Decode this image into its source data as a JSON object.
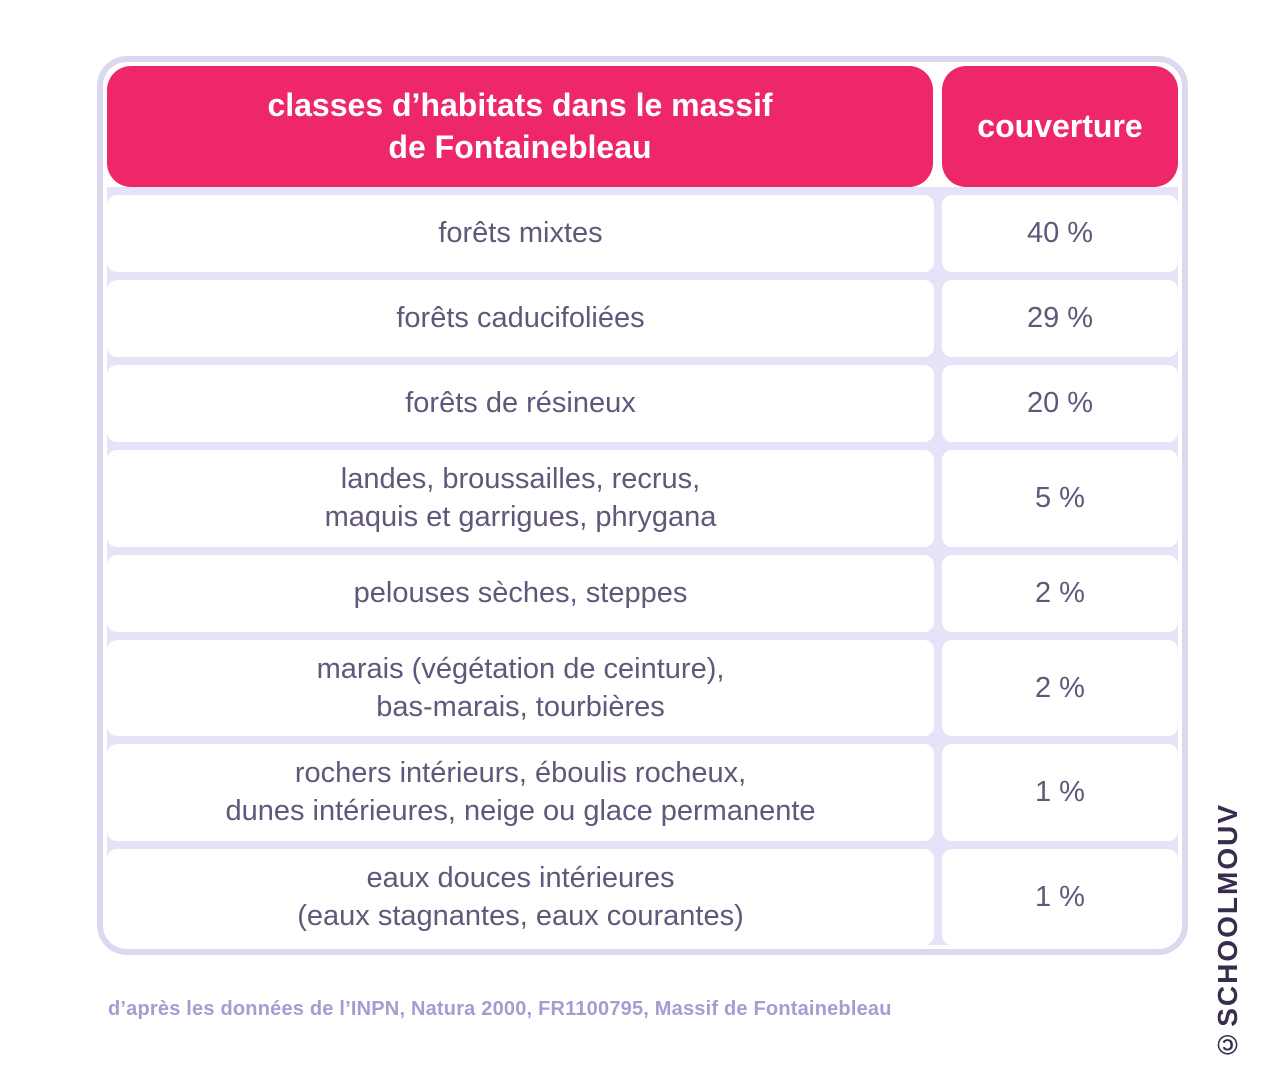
{
  "table": {
    "header": {
      "col1": "classes d’habitats dans le massif\nde Fontainebleau",
      "col2": "couverture"
    },
    "rows": [
      {
        "habitat": "forêts mixtes",
        "coverage": "40 %"
      },
      {
        "habitat": "forêts caducifoliées",
        "coverage": "29 %"
      },
      {
        "habitat": "forêts de résineux",
        "coverage": "20 %"
      },
      {
        "habitat": "landes, broussailles, recrus,\nmaquis et garrigues, phrygana",
        "coverage": "5 %"
      },
      {
        "habitat": "pelouses sèches, steppes",
        "coverage": "2 %"
      },
      {
        "habitat": "marais (végétation de ceinture),\nbas-marais, tourbières",
        "coverage": "2 %"
      },
      {
        "habitat": "rochers intérieurs, éboulis rocheux,\ndunes intérieures, neige ou glace permanente",
        "coverage": "1 %"
      },
      {
        "habitat": "eaux douces intérieures\n(eaux stagnantes, eaux courantes)",
        "coverage": "1 %"
      }
    ]
  },
  "source": {
    "text": "d’après les données de l’INPN, Natura 2000, FR1100795, Massif de Fontainebleau"
  },
  "watermark": {
    "text": "©SCHOOLMOUV"
  },
  "colors": {
    "header_pink": "#ED2769",
    "gap_lavender": "#E6E2F7",
    "border_lavender": "#DDD8F0",
    "body_text": "#62577A",
    "source_text": "#A59CD1",
    "watermark_text": "#382D4C",
    "background": "#FFFFFF"
  },
  "chart_data": {
    "type": "table",
    "title": "classes d’habitats dans le massif de Fontainebleau",
    "columns": [
      "classes d’habitats dans le massif de Fontainebleau",
      "couverture"
    ],
    "categories": [
      "forêts mixtes",
      "forêts caducifoliées",
      "forêts de résineux",
      "landes, broussailles, recrus, maquis et garrigues, phrygana",
      "pelouses sèches, steppes",
      "marais (végétation de ceinture), bas-marais, tourbières",
      "rochers intérieurs, éboulis rocheux, dunes intérieures, neige ou glace permanente",
      "eaux douces intérieures (eaux stagnantes, eaux courantes)"
    ],
    "values_percent": [
      40,
      29,
      20,
      5,
      2,
      2,
      1,
      1
    ],
    "source": "d’après les données de l’INPN, Natura 2000, FR1100795, Massif de Fontainebleau"
  }
}
